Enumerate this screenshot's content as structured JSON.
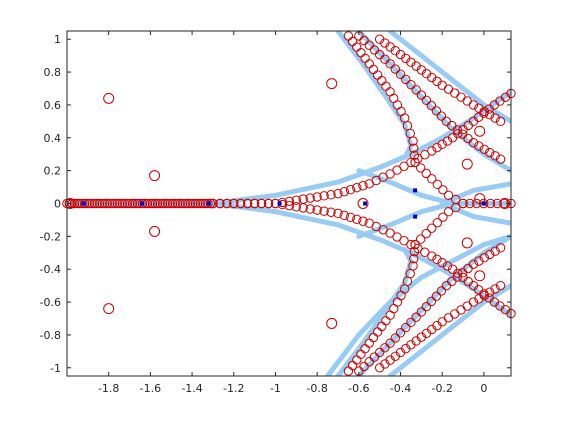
{
  "chart_data": {
    "type": "scatter",
    "title": "",
    "xlabel": "",
    "ylabel": "",
    "xlim": [
      -2.0,
      0.13
    ],
    "ylim": [
      -1.05,
      1.05
    ],
    "xticks": [
      -1.8,
      -1.6,
      -1.4,
      -1.2,
      -1.0,
      -0.8,
      -0.6,
      -0.4,
      -0.2,
      0
    ],
    "xtick_labels": [
      "-1.8",
      "-1.6",
      "-1.4",
      "-1.2",
      "-1",
      "-0.8",
      "-0.6",
      "-0.4",
      "-0.2",
      "0"
    ],
    "yticks": [
      -1.0,
      -0.8,
      -0.6,
      -0.4,
      -0.2,
      0,
      0.2,
      0.4,
      0.6,
      0.8,
      1.0
    ],
    "ytick_labels": [
      "-1",
      "-0.8",
      "-0.6",
      "-0.4",
      "-0.2",
      "0",
      "0.2",
      "0.4",
      "0.6",
      "0.8",
      "1"
    ],
    "grid": false,
    "colors": {
      "curves": "#99ccf2",
      "open_circles": "#cc0000",
      "filled_points": "#0000cc",
      "axes": "#262626"
    },
    "series": [
      {
        "style": "light blue thick curves",
        "curves": [
          [
            [
              -2.0,
              0.0
            ],
            [
              -1.3,
              0.0
            ],
            [
              -1.0,
              0.05
            ],
            [
              -0.7,
              0.13
            ],
            [
              -0.5,
              0.22
            ],
            [
              -0.35,
              0.3
            ],
            [
              -0.2,
              0.4
            ],
            [
              -0.05,
              0.52
            ],
            [
              0.13,
              0.68
            ]
          ],
          [
            [
              -2.0,
              0.0
            ],
            [
              -1.3,
              0.0
            ],
            [
              -1.0,
              -0.05
            ],
            [
              -0.7,
              -0.13
            ],
            [
              -0.5,
              -0.22
            ],
            [
              -0.35,
              -0.3
            ],
            [
              -0.2,
              -0.4
            ],
            [
              -0.05,
              -0.52
            ],
            [
              0.13,
              -0.68
            ]
          ],
          [
            [
              -0.6,
              0.2
            ],
            [
              -0.45,
              0.13
            ],
            [
              -0.3,
              0.05
            ],
            [
              -0.15,
              0.0
            ],
            [
              0.13,
              0.0
            ]
          ],
          [
            [
              -0.6,
              -0.2
            ],
            [
              -0.45,
              -0.13
            ],
            [
              -0.3,
              -0.05
            ],
            [
              -0.15,
              0.0
            ]
          ],
          [
            [
              -0.2,
              0.0
            ],
            [
              -0.05,
              0.08
            ],
            [
              0.13,
              0.12
            ]
          ],
          [
            [
              -0.2,
              0.0
            ],
            [
              -0.05,
              -0.08
            ],
            [
              0.13,
              -0.12
            ]
          ],
          [
            [
              -0.7,
              1.05
            ],
            [
              -0.58,
              0.85
            ],
            [
              -0.47,
              0.65
            ],
            [
              -0.38,
              0.48
            ],
            [
              -0.35,
              0.35
            ],
            [
              -0.38,
              0.28
            ]
          ],
          [
            [
              -0.7,
              -1.05
            ],
            [
              -0.58,
              -0.85
            ],
            [
              -0.47,
              -0.65
            ],
            [
              -0.38,
              -0.48
            ],
            [
              -0.35,
              -0.35
            ],
            [
              -0.38,
              -0.28
            ]
          ],
          [
            [
              -0.6,
              1.05
            ],
            [
              -0.45,
              0.85
            ],
            [
              -0.3,
              0.65
            ],
            [
              -0.15,
              0.45
            ],
            [
              0.0,
              0.3
            ],
            [
              0.13,
              0.2
            ]
          ],
          [
            [
              -0.6,
              -1.05
            ],
            [
              -0.45,
              -0.85
            ],
            [
              -0.3,
              -0.65
            ],
            [
              -0.15,
              -0.45
            ],
            [
              0.0,
              -0.3
            ],
            [
              0.13,
              -0.2
            ]
          ],
          [
            [
              -0.45,
              1.05
            ],
            [
              -0.3,
              0.9
            ],
            [
              -0.15,
              0.75
            ],
            [
              0.0,
              0.6
            ],
            [
              0.13,
              0.5
            ]
          ],
          [
            [
              -0.45,
              -1.05
            ],
            [
              -0.3,
              -0.9
            ],
            [
              -0.15,
              -0.75
            ],
            [
              0.0,
              -0.6
            ],
            [
              0.13,
              -0.5
            ]
          ],
          [
            [
              -0.75,
              -1.05
            ],
            [
              -0.6,
              -0.8
            ],
            [
              -0.45,
              -0.6
            ],
            [
              -0.3,
              -0.45
            ],
            [
              -0.15,
              -0.35
            ],
            [
              0.0,
              -0.25
            ],
            [
              0.13,
              -0.2
            ]
          ]
        ]
      },
      {
        "style": "red open circles",
        "curves": [
          [
            [
              -1.3,
              0.0
            ],
            [
              -1.0,
              0.0
            ],
            [
              -0.7,
              0.06
            ],
            [
              -0.55,
              0.12
            ],
            [
              -0.45,
              0.18
            ],
            [
              -0.35,
              0.25
            ],
            [
              -0.25,
              0.32
            ],
            [
              -0.15,
              0.4
            ],
            [
              -0.05,
              0.5
            ],
            [
              0.05,
              0.6
            ],
            [
              0.13,
              0.67
            ]
          ],
          [
            [
              -1.3,
              0.0
            ],
            [
              -1.0,
              0.0
            ],
            [
              -0.7,
              -0.06
            ],
            [
              -0.55,
              -0.12
            ],
            [
              -0.45,
              -0.18
            ],
            [
              -0.35,
              -0.25
            ],
            [
              -0.25,
              -0.32
            ],
            [
              -0.15,
              -0.4
            ],
            [
              -0.05,
              -0.5
            ],
            [
              0.05,
              -0.6
            ],
            [
              0.13,
              -0.67
            ]
          ],
          [
            [
              -0.65,
              1.02
            ],
            [
              -0.55,
              0.85
            ],
            [
              -0.45,
              0.68
            ],
            [
              -0.38,
              0.52
            ],
            [
              -0.34,
              0.38
            ],
            [
              -0.33,
              0.25
            ]
          ],
          [
            [
              -0.65,
              -1.02
            ],
            [
              -0.55,
              -0.85
            ],
            [
              -0.45,
              -0.68
            ],
            [
              -0.38,
              -0.52
            ],
            [
              -0.34,
              -0.38
            ],
            [
              -0.33,
              -0.25
            ]
          ],
          [
            [
              -0.6,
              1.02
            ],
            [
              -0.45,
              0.85
            ],
            [
              -0.3,
              0.66
            ],
            [
              -0.18,
              0.5
            ],
            [
              -0.05,
              0.37
            ],
            [
              0.08,
              0.27
            ]
          ],
          [
            [
              -0.6,
              -1.02
            ],
            [
              -0.45,
              -0.85
            ],
            [
              -0.3,
              -0.66
            ],
            [
              -0.18,
              -0.5
            ],
            [
              -0.05,
              -0.37
            ],
            [
              0.08,
              -0.27
            ]
          ],
          [
            [
              -0.5,
              1.0
            ],
            [
              -0.35,
              0.86
            ],
            [
              -0.2,
              0.72
            ],
            [
              -0.05,
              0.6
            ],
            [
              0.08,
              0.5
            ]
          ],
          [
            [
              -0.5,
              -1.0
            ],
            [
              -0.35,
              -0.86
            ],
            [
              -0.2,
              -0.72
            ],
            [
              -0.05,
              -0.6
            ],
            [
              0.08,
              -0.5
            ]
          ],
          [
            [
              -0.33,
              0.25
            ],
            [
              -0.25,
              0.15
            ],
            [
              -0.17,
              0.05
            ],
            [
              -0.1,
              0.0
            ],
            [
              0.13,
              0.0
            ]
          ],
          [
            [
              -0.33,
              -0.25
            ],
            [
              -0.25,
              -0.15
            ],
            [
              -0.17,
              -0.05
            ],
            [
              -0.1,
              0.0
            ]
          ]
        ],
        "points": [
          [
            -1.8,
            0.64
          ],
          [
            -1.8,
            -0.64
          ],
          [
            -1.58,
            0.17
          ],
          [
            -1.58,
            -0.17
          ],
          [
            -0.73,
            0.73
          ],
          [
            -0.73,
            -0.73
          ],
          [
            -0.58,
            0.0
          ],
          [
            -0.08,
            0.24
          ],
          [
            -0.08,
            -0.24
          ],
          [
            -0.02,
            0.44
          ],
          [
            -0.02,
            -0.44
          ],
          [
            -0.02,
            0.03
          ],
          [
            0.1,
            0.0
          ]
        ],
        "line_segment": {
          "from": -2.0,
          "to": -1.3,
          "y": 0.0
        }
      },
      {
        "style": "blue filled points",
        "points": [
          [
            -1.92,
            0.0
          ],
          [
            -1.64,
            0.0
          ],
          [
            -1.32,
            0.0
          ],
          [
            -0.98,
            0.0
          ],
          [
            -0.57,
            0.0
          ],
          [
            -0.33,
            0.08
          ],
          [
            -0.33,
            -0.08
          ],
          [
            0.0,
            0.0
          ]
        ]
      }
    ]
  }
}
